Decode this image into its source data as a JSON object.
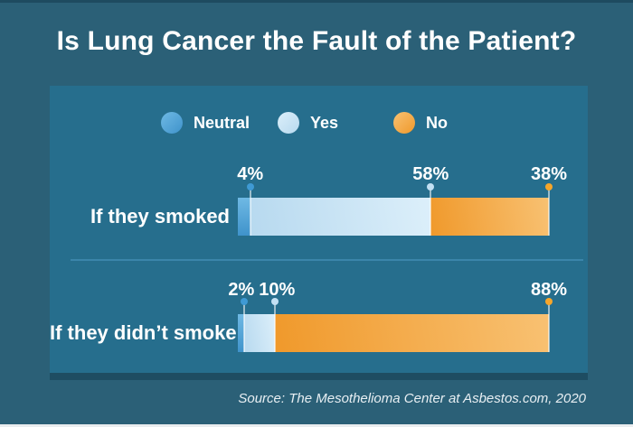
{
  "title": "Is Lung Cancer the Fault of the Patient?",
  "source": "Source: The Mesothelioma Center at Asbestos.com, 2020",
  "theme": {
    "background": "#2b6077",
    "panel": "#266e8d",
    "panel_edge": "#1e4d62",
    "divider": "#4089af",
    "title_color": "#ffffff",
    "text_color": "#ffffff",
    "source_color": "#e8eff3",
    "top_edge": "#1e4b60",
    "bottom_edge": "#e9edef",
    "stem_color": "rgba(255,255,255,0.55)"
  },
  "chart_data": {
    "type": "bar",
    "stacked": true,
    "orientation": "horizontal",
    "unit": "percent",
    "xlim": [
      0,
      100
    ],
    "legend_position": "top",
    "legend": [
      {
        "label": "Neutral",
        "color": "#4a9ed5",
        "gradient_from": "#6fb9e4",
        "gradient_to": "#3f93cb",
        "dot_color": "#3f9ad4"
      },
      {
        "label": "Yes",
        "color": "#c7e3f4",
        "gradient_from": "#dceffa",
        "gradient_to": "#b7d9ef",
        "dot_color": "#c2e0f3"
      },
      {
        "label": "No",
        "color": "#f5a93c",
        "gradient_from": "#f8c172",
        "gradient_to": "#f0992b",
        "dot_color": "#f6a62b"
      }
    ],
    "series_names": [
      "Neutral",
      "Yes",
      "No"
    ],
    "rows": [
      {
        "category": "If they smoked",
        "values": [
          4,
          58,
          38
        ],
        "labels": [
          "4%",
          "58%",
          "38%"
        ]
      },
      {
        "category": "If they didn’t smoke",
        "values": [
          2,
          10,
          88
        ],
        "labels": [
          "2%",
          "10%",
          "88%"
        ]
      }
    ]
  }
}
